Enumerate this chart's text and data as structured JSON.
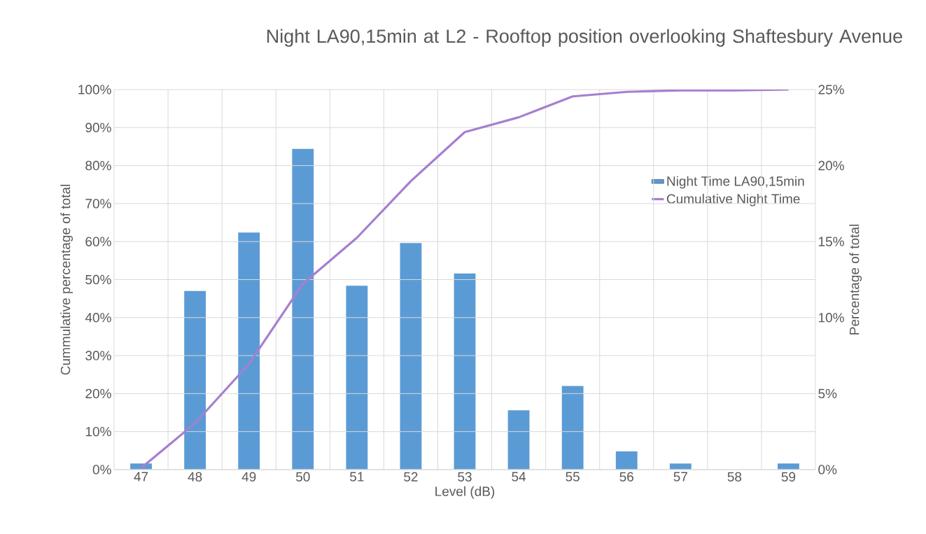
{
  "chart_data": {
    "type": "bar",
    "title": "Night LA90,15min at L2 - Rooftop position overlooking Shaftesbury Avenue",
    "xlabel": "Level (dB)",
    "ylabel": "Cummulative percentage of total",
    "y2label": "Percentage of total",
    "categories": [
      "47",
      "48",
      "49",
      "50",
      "51",
      "52",
      "53",
      "54",
      "55",
      "56",
      "57",
      "58",
      "59"
    ],
    "series": [
      {
        "name": "Night Time LA90,15min",
        "axis": "y2",
        "color": "#5b9bd5",
        "values": [
          0.4,
          11.75,
          15.6,
          21.1,
          12.1,
          14.9,
          12.9,
          3.9,
          5.5,
          1.2,
          0.4,
          0,
          0.4
        ]
      },
      {
        "name": "Cumulative Night Time",
        "type": "line",
        "axis": "y",
        "color": "#a67fd0",
        "values": [
          0.4,
          12.2,
          27.8,
          48.9,
          61.0,
          75.9,
          88.8,
          92.7,
          98.2,
          99.4,
          99.8,
          99.8,
          100
        ]
      }
    ],
    "ylim": [
      0,
      100
    ],
    "yticks": [
      {
        "value": 0,
        "label": "0%"
      },
      {
        "value": 10,
        "label": "10%"
      },
      {
        "value": 20,
        "label": "20%"
      },
      {
        "value": 30,
        "label": "30%"
      },
      {
        "value": 40,
        "label": "40%"
      },
      {
        "value": 50,
        "label": "50%"
      },
      {
        "value": 60,
        "label": "60%"
      },
      {
        "value": 70,
        "label": "70%"
      },
      {
        "value": 80,
        "label": "80%"
      },
      {
        "value": 90,
        "label": "90%"
      },
      {
        "value": 100,
        "label": "100%"
      }
    ],
    "y2lim": [
      0,
      25
    ],
    "y2ticks": [
      {
        "value": 0,
        "label": "0%"
      },
      {
        "value": 5,
        "label": "5%"
      },
      {
        "value": 10,
        "label": "10%"
      },
      {
        "value": 15,
        "label": "15%"
      },
      {
        "value": 20,
        "label": "20%"
      },
      {
        "value": 25,
        "label": "25%"
      }
    ],
    "grid": true,
    "legend": "right"
  }
}
